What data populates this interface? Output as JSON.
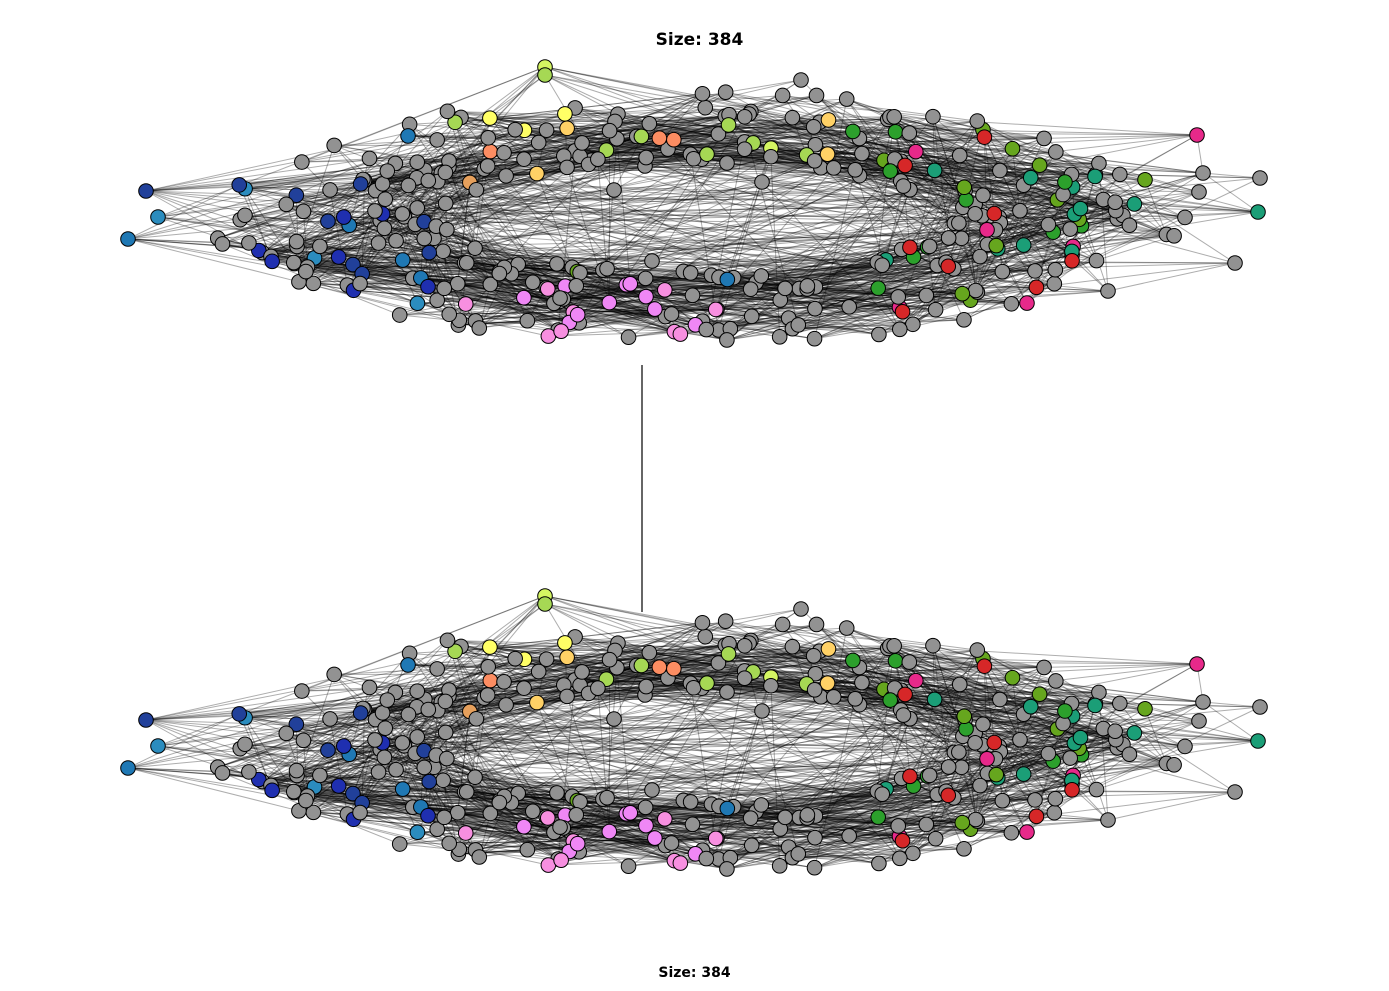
{
  "layers": [
    {
      "title": "Size: 384"
    },
    {
      "title": "Size: 384"
    }
  ],
  "node_count": 384,
  "colors": {
    "background": "#ffffff",
    "edge": "#000000",
    "node_default": "#929292",
    "node_outline": "#000000",
    "interlayer_edge": "#000000",
    "palette": [
      "#d62728",
      "#fc8d62",
      "#ff9e90",
      "#f48fb1",
      "#e7298a",
      "#f78fe0",
      "#ef87f5",
      "#1b9e77",
      "#26a69a",
      "#2ca02c",
      "#66a61e",
      "#a6d854",
      "#ffff66",
      "#d4f562",
      "#1f78b4",
      "#1f2fb0",
      "#21409a",
      "#2b8cbe",
      "#e6a05c",
      "#ffd166"
    ]
  }
}
